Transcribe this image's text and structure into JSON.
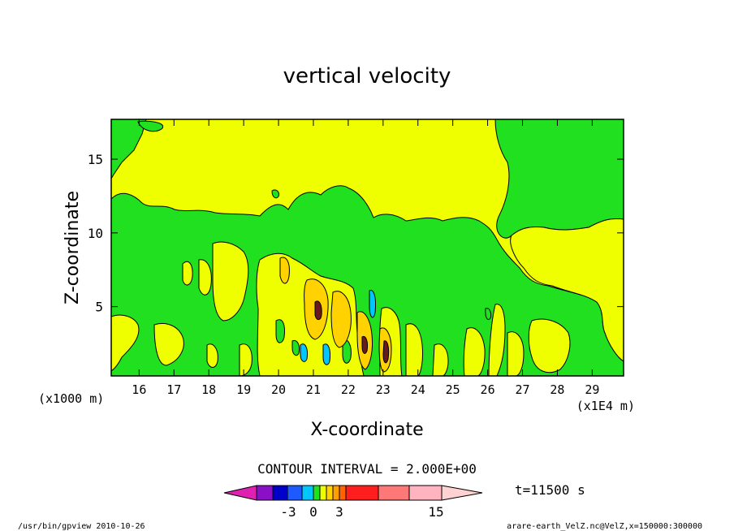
{
  "chart_data": {
    "type": "heatmap",
    "title": "vertical velocity",
    "xlabel": "X-coordinate",
    "ylabel": "Z-coordinate",
    "x_unit_note": "(x1E4 m)",
    "y_unit_note": "(x1000 m)",
    "xlim": [
      15.2,
      29.9
    ],
    "ylim": [
      0.3,
      17.7
    ],
    "x_ticks": [
      "16",
      "17",
      "18",
      "19",
      "20",
      "21",
      "22",
      "23",
      "24",
      "25",
      "26",
      "27",
      "28",
      "29"
    ],
    "y_ticks": [
      "5",
      "10",
      "15"
    ],
    "contour_interval_label": "CONTOUR INTERVAL = 2.000E+00",
    "time_label": "t=11500 s",
    "colorbar": {
      "tick_labels": [
        "-3",
        "0",
        "3",
        "15"
      ],
      "colors": [
        "#e020b0",
        "#8a10c8",
        "#0000c8",
        "#1e5aff",
        "#00c8ff",
        "#20e020",
        "#f0ff00",
        "#ffd200",
        "#ffa000",
        "#ff6400",
        "#ff1e1e",
        "#ff7878",
        "#ffb4c0",
        "#ffd2d2"
      ]
    },
    "regions": [
      {
        "level": "green",
        "value": -1,
        "color": "#20e020"
      },
      {
        "level": "yellow",
        "value": 1,
        "color": "#f0ff00"
      },
      {
        "level": "orange",
        "value": 3,
        "color": "#ffd200"
      },
      {
        "level": "cyan",
        "value": -3,
        "color": "#00c8ff"
      },
      {
        "level": "dark",
        "value": 5,
        "color": "#6a1a1a"
      }
    ]
  },
  "footer": {
    "left": "/usr/bin/gpview  2010-10-26",
    "right": "arare-earth_VelZ.nc@VelZ,x=150000:300000"
  }
}
